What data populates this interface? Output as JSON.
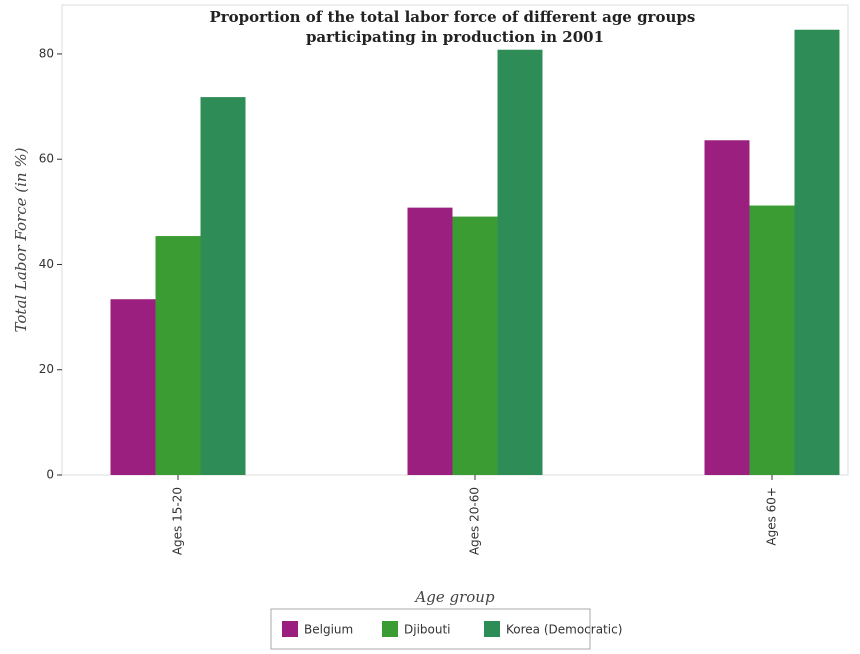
{
  "chart_data": {
    "type": "bar",
    "title": "Proportion of the total labor force of different age groups participating in production in 2001",
    "xlabel": "Age group",
    "ylabel": "Total Labor Force (in %)",
    "categories": [
      "Ages 15-20",
      "Ages 20-60",
      "Ages 60+"
    ],
    "series": [
      {
        "name": "Belgium",
        "color": "#9b1f7e",
        "values": [
          33.4,
          50.8,
          63.6
        ]
      },
      {
        "name": "Djibouti",
        "color": "#3c9c34",
        "values": [
          45.4,
          49.1,
          51.2
        ]
      },
      {
        "name": "Korea (Democratic)",
        "color": "#2e8c57",
        "values": [
          71.8,
          80.8,
          84.6
        ]
      }
    ],
    "ylim": [
      0,
      89.3
    ],
    "yticks": [
      0,
      20,
      40,
      60,
      80
    ],
    "legend": "bottom"
  }
}
